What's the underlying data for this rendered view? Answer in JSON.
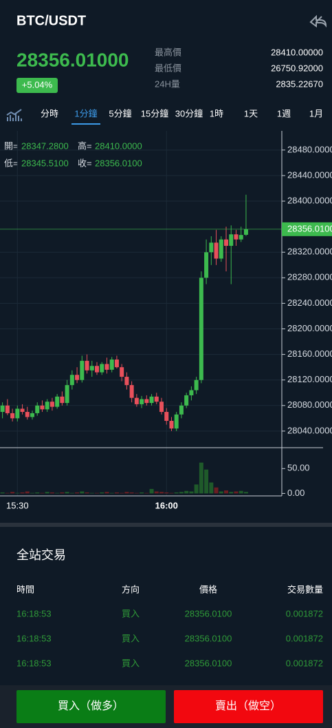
{
  "header": {
    "title": "BTC/USDT"
  },
  "ticker": {
    "price": "28356.01000",
    "change": "+5.04%",
    "stats": [
      {
        "label": "最高價",
        "value": "28410.00000"
      },
      {
        "label": "最低價",
        "value": "26750.92000"
      },
      {
        "label": "24H量",
        "value": "2835.22670"
      }
    ]
  },
  "tabs": {
    "items": [
      "分時",
      "1分鐘",
      "5分鐘",
      "15分鐘",
      "30分鐘",
      "1時",
      "1天",
      "1週",
      "1月"
    ]
  },
  "chart_data": {
    "type": "candlestick",
    "ohlc_info": [
      {
        "label": "開=",
        "value": "28347.2800"
      },
      {
        "label": "高=",
        "value": "28410.0000"
      },
      {
        "label": "低=",
        "value": "28345.5100"
      },
      {
        "label": "收=",
        "value": "28356.0100"
      }
    ],
    "open": [
      28070,
      28080,
      28068,
      28060,
      28075,
      28070,
      28062,
      28068,
      28080,
      28074,
      28086,
      28078,
      28094,
      28084,
      28112,
      28128,
      28120,
      28150,
      28135,
      28142,
      28132,
      28145,
      28136,
      28152,
      28140,
      28125,
      28112,
      28092,
      28082,
      28090,
      28084,
      28094,
      28086,
      28070,
      28056,
      28044,
      28066,
      28080,
      28096,
      28104,
      28120,
      28280,
      28320,
      28335,
      28310,
      28340,
      28330,
      28348,
      28340,
      28347.28
    ],
    "high": [
      28085,
      28090,
      28075,
      28080,
      28082,
      28078,
      28072,
      28085,
      28088,
      28090,
      28092,
      28098,
      28102,
      28120,
      28135,
      28140,
      28158,
      28160,
      28150,
      28148,
      28148,
      28155,
      28156,
      28158,
      28145,
      28132,
      28118,
      28098,
      28095,
      28096,
      28098,
      28100,
      28092,
      28076,
      28062,
      28070,
      28085,
      28100,
      28110,
      28125,
      28290,
      28340,
      28345,
      28355,
      28345,
      28360,
      28362,
      28355,
      28360,
      28410
    ],
    "low": [
      28060,
      28065,
      28055,
      28055,
      28066,
      28058,
      28058,
      28064,
      28070,
      28070,
      28072,
      28075,
      28080,
      28080,
      28105,
      28115,
      28116,
      28130,
      28125,
      28128,
      28128,
      28130,
      28132,
      28138,
      28118,
      28105,
      28085,
      28078,
      28076,
      28080,
      28080,
      28082,
      28066,
      28050,
      28040,
      28040,
      28060,
      28076,
      28088,
      28098,
      28115,
      28270,
      28300,
      28300,
      28305,
      28290,
      28270,
      28330,
      28336,
      28345.51
    ],
    "close": [
      28080,
      28068,
      28060,
      28075,
      28070,
      28062,
      28068,
      28080,
      28074,
      28086,
      28078,
      28094,
      28084,
      28112,
      28128,
      28120,
      28150,
      28135,
      28142,
      28132,
      28145,
      28136,
      28152,
      28140,
      28125,
      28112,
      28092,
      28082,
      28090,
      28084,
      28094,
      28086,
      28070,
      28056,
      28044,
      28066,
      28080,
      28096,
      28104,
      28120,
      28280,
      28320,
      28335,
      28310,
      28340,
      28330,
      28348,
      28340,
      28347,
      28356.01
    ],
    "volume": [
      2,
      1,
      3,
      1,
      2,
      4,
      1,
      2,
      1,
      3,
      2,
      1,
      2,
      3,
      1,
      2,
      4,
      2,
      1,
      1,
      2,
      3,
      1,
      2,
      1,
      3,
      2,
      1,
      2,
      1,
      9,
      4,
      3,
      2,
      1,
      2,
      3,
      5,
      4,
      18,
      62,
      48,
      22,
      12,
      4,
      6,
      3,
      4,
      5,
      3
    ],
    "up_color": "#3dba4e",
    "down_color": "#e8505b",
    "xlim": [
      -0.5,
      56.2
    ],
    "xticks": [
      {
        "value": 3,
        "label": "15:30"
      },
      {
        "value": 33,
        "label": "16:00"
      }
    ],
    "ylim": [
      28014,
      28510
    ],
    "yticks": [
      {
        "value": 28040,
        "label": "28040.0000"
      },
      {
        "value": 28080,
        "label": "28080.0000"
      },
      {
        "value": 28120,
        "label": "28120.0000"
      },
      {
        "value": 28160,
        "label": "28160.0000"
      },
      {
        "value": 28200,
        "label": "28200.0000"
      },
      {
        "value": 28240,
        "label": "28240.0000"
      },
      {
        "value": 28280,
        "label": "28280.0000"
      },
      {
        "value": 28320,
        "label": "28320.0000"
      },
      {
        "value": 28400,
        "label": "28400.0000"
      },
      {
        "value": 28440,
        "label": "28440.0000"
      },
      {
        "value": 28480,
        "label": "28480.0000"
      }
    ],
    "last_price": {
      "value": 28356.01,
      "label": "28356.0100"
    },
    "volume_ylim": [
      -5,
      92
    ],
    "volume_ticks": [
      {
        "value": 0,
        "label": "0.00"
      },
      {
        "value": 50,
        "label": "50.00"
      }
    ]
  },
  "trades": {
    "title": "全站交易",
    "columns": [
      "時間",
      "方向",
      "價格",
      "交易數量"
    ],
    "rows": [
      [
        "16:18:53",
        "買入",
        "28356.0100",
        "0.001872"
      ],
      [
        "16:18:53",
        "買入",
        "28356.0100",
        "0.001872"
      ],
      [
        "16:18:53",
        "買入",
        "28356.0100",
        "0.001872"
      ]
    ]
  },
  "actions": {
    "buy": "買入（做多）",
    "sell": "賣出（做空）"
  }
}
